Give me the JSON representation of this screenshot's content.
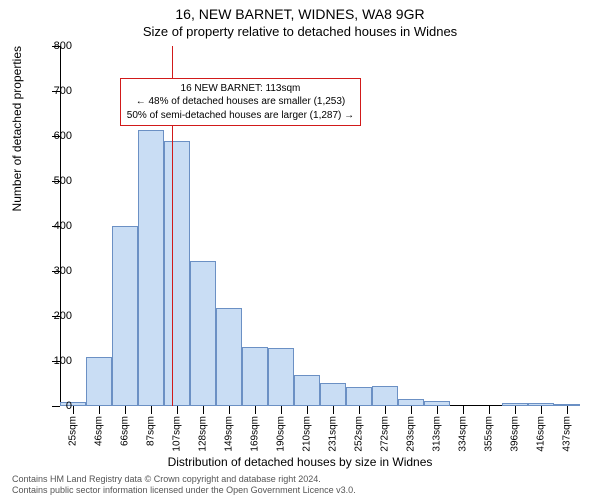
{
  "title_main": "16, NEW BARNET, WIDNES, WA8 9GR",
  "title_sub": "Size of property relative to detached houses in Widnes",
  "ylabel": "Number of detached properties",
  "xlabel": "Distribution of detached houses by size in Widnes",
  "footer_line1": "Contains HM Land Registry data © Crown copyright and database right 2024.",
  "footer_line2": "Contains public sector information licensed under the Open Government Licence v3.0.",
  "chart": {
    "type": "histogram",
    "background_color": "#ffffff",
    "axis_color": "#000000",
    "bar_fill": "#c9ddf4",
    "bar_stroke": "#6b90c4",
    "marker_color": "#d11a1a",
    "callout_border": "#d11a1a",
    "ylim": [
      0,
      800
    ],
    "ytick_step": 100,
    "title_fontsize": 14,
    "subtitle_fontsize": 13,
    "axis_label_fontsize": 12,
    "tick_fontsize": 11,
    "xtick_fontsize": 10,
    "callout_fontsize": 10,
    "bar_width_ratio": 1.0,
    "x_labels": [
      "25sqm",
      "46sqm",
      "66sqm",
      "87sqm",
      "107sqm",
      "128sqm",
      "149sqm",
      "169sqm",
      "190sqm",
      "210sqm",
      "231sqm",
      "252sqm",
      "272sqm",
      "293sqm",
      "313sqm",
      "334sqm",
      "355sqm",
      "396sqm",
      "416sqm",
      "437sqm"
    ],
    "values": [
      10,
      108,
      400,
      614,
      590,
      322,
      218,
      132,
      130,
      70,
      52,
      42,
      44,
      16,
      12,
      0,
      0,
      6,
      6,
      4
    ],
    "marker_value_sqm": 113,
    "marker_bin_index_fractional": 4.29,
    "callout": {
      "line1": "16 NEW BARNET: 113sqm",
      "line2": "← 48% of detached houses are smaller (1,253)",
      "line3": "50% of semi-detached houses are larger (1,287) →",
      "top_at_y": 730,
      "left_bin_index": 2.3
    }
  }
}
